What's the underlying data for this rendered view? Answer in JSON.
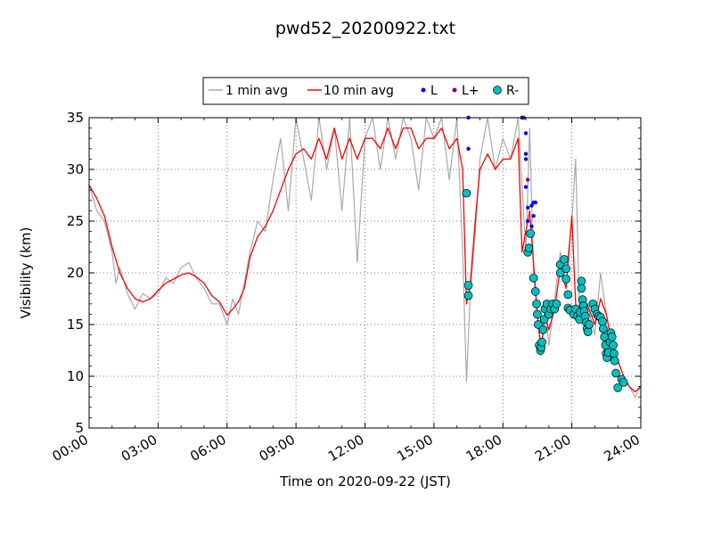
{
  "chart_data": {
    "type": "line",
    "title": "pwd52_20200922.txt",
    "xlabel": "Time on 2020-09-22 (JST)",
    "ylabel": "Visibility (km)",
    "xlim": [
      "00:00",
      "24:00"
    ],
    "ylim": [
      5,
      35
    ],
    "x_ticks": [
      "00:00",
      "03:00",
      "06:00",
      "09:00",
      "12:00",
      "15:00",
      "18:00",
      "21:00",
      "24:00"
    ],
    "y_ticks": [
      5,
      10,
      15,
      20,
      25,
      30,
      35
    ],
    "grid": true,
    "legend_position": "top-center",
    "series": [
      {
        "name": "1 min avg",
        "kind": "line",
        "color": "#a9a9a9",
        "points": [
          [
            "00:00",
            28.5
          ],
          [
            "00:20",
            26
          ],
          [
            "00:40",
            25
          ],
          [
            "01:00",
            22
          ],
          [
            "01:10",
            19
          ],
          [
            "01:20",
            20.5
          ],
          [
            "01:40",
            18
          ],
          [
            "02:00",
            16.5
          ],
          [
            "02:20",
            18
          ],
          [
            "02:40",
            17.5
          ],
          [
            "03:00",
            18
          ],
          [
            "03:20",
            19.5
          ],
          [
            "03:40",
            19
          ],
          [
            "04:00",
            20.5
          ],
          [
            "04:20",
            21
          ],
          [
            "04:40",
            19.5
          ],
          [
            "05:00",
            18.5
          ],
          [
            "05:20",
            17
          ],
          [
            "05:40",
            17
          ],
          [
            "06:00",
            15
          ],
          [
            "06:15",
            17.5
          ],
          [
            "06:30",
            16
          ],
          [
            "06:45",
            19
          ],
          [
            "07:00",
            22
          ],
          [
            "07:20",
            25
          ],
          [
            "07:40",
            24
          ],
          [
            "08:00",
            29
          ],
          [
            "08:20",
            33
          ],
          [
            "08:40",
            26
          ],
          [
            "09:00",
            35
          ],
          [
            "09:20",
            31
          ],
          [
            "09:40",
            27
          ],
          [
            "10:00",
            35
          ],
          [
            "10:20",
            30
          ],
          [
            "10:40",
            34
          ],
          [
            "11:00",
            26
          ],
          [
            "11:20",
            35
          ],
          [
            "11:40",
            21
          ],
          [
            "12:00",
            33
          ],
          [
            "12:20",
            35
          ],
          [
            "12:40",
            30
          ],
          [
            "13:00",
            35
          ],
          [
            "13:20",
            31
          ],
          [
            "13:40",
            35
          ],
          [
            "14:00",
            33
          ],
          [
            "14:20",
            28
          ],
          [
            "14:40",
            35
          ],
          [
            "15:00",
            33
          ],
          [
            "15:20",
            35
          ],
          [
            "15:40",
            29
          ],
          [
            "16:00",
            35
          ],
          [
            "16:15",
            22
          ],
          [
            "16:25",
            9.5
          ],
          [
            "16:35",
            18
          ],
          [
            "16:50",
            25
          ],
          [
            "17:00",
            31
          ],
          [
            "17:20",
            35
          ],
          [
            "17:40",
            30
          ],
          [
            "18:00",
            33
          ],
          [
            "18:20",
            31
          ],
          [
            "18:40",
            35
          ],
          [
            "19:00",
            22
          ],
          [
            "19:10",
            34
          ],
          [
            "19:20",
            20
          ],
          [
            "19:30",
            16
          ],
          [
            "19:40",
            12
          ],
          [
            "19:50",
            17
          ],
          [
            "20:00",
            13
          ],
          [
            "20:15",
            17.5
          ],
          [
            "20:30",
            22
          ],
          [
            "20:45",
            20
          ],
          [
            "21:00",
            25
          ],
          [
            "21:10",
            31
          ],
          [
            "21:20",
            16
          ],
          [
            "21:40",
            17
          ],
          [
            "22:00",
            14
          ],
          [
            "22:15",
            20
          ],
          [
            "22:30",
            16
          ],
          [
            "22:45",
            13
          ],
          [
            "23:00",
            11.5
          ],
          [
            "23:15",
            10
          ],
          [
            "23:30",
            9
          ],
          [
            "23:45",
            8
          ],
          [
            "24:00",
            9
          ]
        ]
      },
      {
        "name": "10 min avg",
        "kind": "line",
        "color": "#ff0000",
        "points": [
          [
            "00:00",
            28.5
          ],
          [
            "00:20",
            27.2
          ],
          [
            "00:40",
            25.5
          ],
          [
            "01:00",
            22.5
          ],
          [
            "01:20",
            20
          ],
          [
            "01:40",
            18.5
          ],
          [
            "02:00",
            17.5
          ],
          [
            "02:20",
            17.2
          ],
          [
            "02:40",
            17.5
          ],
          [
            "03:00",
            18.3
          ],
          [
            "03:20",
            19
          ],
          [
            "03:40",
            19.4
          ],
          [
            "04:00",
            19.8
          ],
          [
            "04:20",
            20
          ],
          [
            "04:40",
            19.6
          ],
          [
            "05:00",
            19
          ],
          [
            "05:20",
            17.8
          ],
          [
            "05:40",
            17.2
          ],
          [
            "06:00",
            15.9
          ],
          [
            "06:15",
            16.5
          ],
          [
            "06:30",
            17.2
          ],
          [
            "06:45",
            18.5
          ],
          [
            "07:00",
            21.5
          ],
          [
            "07:20",
            23.5
          ],
          [
            "07:40",
            24.5
          ],
          [
            "08:00",
            26
          ],
          [
            "08:20",
            28
          ],
          [
            "08:40",
            30
          ],
          [
            "09:00",
            31.5
          ],
          [
            "09:20",
            32
          ],
          [
            "09:40",
            31
          ],
          [
            "10:00",
            33
          ],
          [
            "10:20",
            31
          ],
          [
            "10:40",
            34
          ],
          [
            "11:00",
            31
          ],
          [
            "11:20",
            33
          ],
          [
            "11:40",
            31
          ],
          [
            "12:00",
            33
          ],
          [
            "12:20",
            33
          ],
          [
            "12:40",
            32
          ],
          [
            "13:00",
            34
          ],
          [
            "13:20",
            32
          ],
          [
            "13:40",
            34
          ],
          [
            "14:00",
            34
          ],
          [
            "14:20",
            32
          ],
          [
            "14:40",
            33
          ],
          [
            "15:00",
            33
          ],
          [
            "15:20",
            34
          ],
          [
            "15:40",
            32
          ],
          [
            "16:00",
            33
          ],
          [
            "16:15",
            30
          ],
          [
            "16:25",
            17
          ],
          [
            "16:35",
            19
          ],
          [
            "16:50",
            26
          ],
          [
            "17:00",
            30
          ],
          [
            "17:20",
            31.5
          ],
          [
            "17:40",
            30
          ],
          [
            "18:00",
            31
          ],
          [
            "18:20",
            31
          ],
          [
            "18:40",
            33
          ],
          [
            "18:50",
            22
          ],
          [
            "19:00",
            24
          ],
          [
            "19:10",
            26
          ],
          [
            "19:20",
            21
          ],
          [
            "19:30",
            16
          ],
          [
            "19:40",
            12.5
          ],
          [
            "19:50",
            16
          ],
          [
            "20:00",
            14.5
          ],
          [
            "20:15",
            16.5
          ],
          [
            "20:30",
            20.5
          ],
          [
            "20:45",
            18.5
          ],
          [
            "21:00",
            25.5
          ],
          [
            "21:10",
            17
          ],
          [
            "21:20",
            16
          ],
          [
            "21:40",
            17
          ],
          [
            "22:00",
            15
          ],
          [
            "22:15",
            17.5
          ],
          [
            "22:30",
            16
          ],
          [
            "22:45",
            13
          ],
          [
            "23:00",
            11.5
          ],
          [
            "23:15",
            10
          ],
          [
            "23:30",
            9
          ],
          [
            "23:45",
            8.5
          ],
          [
            "24:00",
            9
          ]
        ]
      },
      {
        "name": "L",
        "kind": "scatter",
        "color": "#0000ff",
        "marker": "dot",
        "points": [
          [
            "16:30",
            35
          ],
          [
            "16:30",
            32
          ],
          [
            "18:50",
            35
          ],
          [
            "19:00",
            33.5
          ],
          [
            "19:00",
            31.5
          ],
          [
            "19:00",
            31
          ],
          [
            "19:00",
            28.3
          ],
          [
            "19:05",
            26.3
          ],
          [
            "19:05",
            25
          ],
          [
            "19:10",
            24
          ],
          [
            "19:15",
            24.5
          ],
          [
            "19:15",
            26.5
          ],
          [
            "19:20",
            26.8
          ],
          [
            "19:20",
            25.5
          ],
          [
            "19:25",
            26.8
          ]
        ]
      },
      {
        "name": "L+",
        "kind": "scatter",
        "color": "#800080",
        "marker": "dot",
        "points": [
          [
            "18:55",
            35
          ],
          [
            "19:05",
            29
          ]
        ]
      },
      {
        "name": "R-",
        "kind": "scatter",
        "color": "#00bfbf",
        "marker": "circle",
        "points": [
          [
            "16:25",
            27.7
          ],
          [
            "16:30",
            18.8
          ],
          [
            "16:30",
            17.8
          ],
          [
            "19:05",
            22
          ],
          [
            "19:08",
            22.4
          ],
          [
            "19:12",
            23.8
          ],
          [
            "19:20",
            19.5
          ],
          [
            "19:25",
            18.2
          ],
          [
            "19:28",
            17
          ],
          [
            "19:30",
            16
          ],
          [
            "19:32",
            15
          ],
          [
            "19:35",
            13
          ],
          [
            "19:38",
            12.5
          ],
          [
            "19:40",
            12.8
          ],
          [
            "19:42",
            13.3
          ],
          [
            "19:45",
            14.5
          ],
          [
            "19:48",
            15.5
          ],
          [
            "19:50",
            16.5
          ],
          [
            "19:55",
            17
          ],
          [
            "20:00",
            16
          ],
          [
            "20:05",
            16.5
          ],
          [
            "20:10",
            17
          ],
          [
            "20:15",
            16.5
          ],
          [
            "20:20",
            17
          ],
          [
            "20:30",
            20
          ],
          [
            "20:30",
            20.8
          ],
          [
            "20:40",
            21.3
          ],
          [
            "20:45",
            20.4
          ],
          [
            "20:45",
            19.4
          ],
          [
            "20:50",
            17.9
          ],
          [
            "20:50",
            16.6
          ],
          [
            "20:55",
            16.4
          ],
          [
            "21:05",
            16
          ],
          [
            "21:10",
            16.5
          ],
          [
            "21:15",
            15.8
          ],
          [
            "21:20",
            15.5
          ],
          [
            "21:22",
            16.2
          ],
          [
            "21:25",
            19.2
          ],
          [
            "21:25",
            18.5
          ],
          [
            "21:28",
            17.4
          ],
          [
            "21:30",
            16.8
          ],
          [
            "21:32",
            16.3
          ],
          [
            "21:35",
            15.8
          ],
          [
            "21:38",
            15.2
          ],
          [
            "21:40",
            14.6
          ],
          [
            "21:42",
            14.3
          ],
          [
            "21:45",
            15
          ],
          [
            "21:55",
            17
          ],
          [
            "22:00",
            16.5
          ],
          [
            "22:05",
            16
          ],
          [
            "22:10",
            15.8
          ],
          [
            "22:15",
            15.7
          ],
          [
            "22:20",
            15.3
          ],
          [
            "22:22",
            14.6
          ],
          [
            "22:25",
            13.8
          ],
          [
            "22:28",
            13
          ],
          [
            "22:30",
            12.2
          ],
          [
            "22:32",
            11.8
          ],
          [
            "22:35",
            12.3
          ],
          [
            "22:40",
            13.3
          ],
          [
            "22:42",
            14.2
          ],
          [
            "22:45",
            13.8
          ],
          [
            "22:48",
            13
          ],
          [
            "22:50",
            12.2
          ],
          [
            "22:52",
            11.5
          ],
          [
            "22:55",
            10.3
          ],
          [
            "23:00",
            8.9
          ],
          [
            "23:10",
            9.7
          ],
          [
            "23:15",
            9.4
          ]
        ]
      }
    ]
  }
}
